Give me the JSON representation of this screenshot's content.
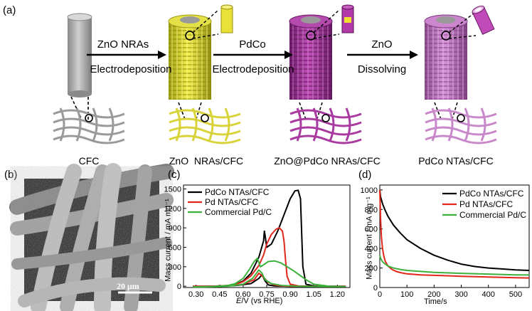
{
  "panel_a": {
    "tag": "(a)",
    "steps": [
      {
        "top": "ZnO NRAs",
        "bottom": "Electrodeposition"
      },
      {
        "top": "PdCo",
        "bottom": "Electrodeposition"
      },
      {
        "top": "ZnO",
        "bottom": "Dissolving"
      }
    ],
    "stages": [
      "CFC",
      "ZnO  NRAs/CFC",
      "ZnO@PdCo NRAs/CFC",
      "PdCo NTAs/CFC"
    ],
    "colors": {
      "cfc": "#a8a8a8",
      "zno": "#e6e23a",
      "pdco_zno": "#b03aa8",
      "pdco": "#c476c8"
    }
  },
  "panel_b": {
    "tag": "(b)",
    "scale_bar": "20 μm"
  },
  "chart_data": [
    {
      "tag": "(c)",
      "type": "line",
      "xlabel_italic": "E",
      "xlabel_rest": "/V (vs RHE)",
      "ylabel": "Mass current / mA mg⁻¹",
      "xlim": [
        0.22,
        1.28
      ],
      "ylim": [
        -20,
        1560
      ],
      "xticks": [
        0.3,
        0.45,
        0.6,
        0.75,
        0.9,
        1.05,
        1.2
      ],
      "xtick_labels": [
        "0.30",
        "0.45",
        "0.60",
        "0.75",
        "0.90",
        "1.05",
        "1.20"
      ],
      "yticks": [
        0,
        300,
        600,
        900,
        1200,
        1500
      ],
      "ytick_labels": [
        "0",
        "300",
        "600",
        "900",
        "1200",
        "1500"
      ],
      "legend_position": "top-left",
      "series": [
        {
          "name": "PdCo NTAs/CFC",
          "color": "#000000",
          "x": [
            0.28,
            0.4,
            0.5,
            0.55,
            0.6,
            0.65,
            0.7,
            0.73,
            0.735,
            0.74,
            0.75,
            0.78,
            0.82,
            0.86,
            0.9,
            0.93,
            0.95,
            0.965,
            0.97,
            0.98,
            1.0,
            1.05,
            1.1,
            1.2,
            1.25,
            1.2,
            1.0,
            0.9,
            0.8,
            0.76,
            0.74,
            0.72,
            0.7,
            0.65,
            0.55,
            0.4,
            0.28
          ],
          "y": [
            0,
            0,
            10,
            30,
            80,
            200,
            450,
            700,
            850,
            780,
            600,
            650,
            850,
            1100,
            1350,
            1470,
            1480,
            1350,
            1000,
            300,
            30,
            5,
            0,
            0,
            0,
            0,
            0,
            0,
            5,
            20,
            80,
            180,
            120,
            40,
            10,
            0,
            0
          ]
        },
        {
          "name": "Pd NTAs/CFC",
          "color": "#e1261c",
          "x": [
            0.28,
            0.4,
            0.5,
            0.55,
            0.6,
            0.65,
            0.7,
            0.73,
            0.75,
            0.78,
            0.81,
            0.83,
            0.85,
            0.86,
            0.87,
            0.88,
            0.9,
            0.95,
            1.0,
            1.1,
            1.25,
            1.1,
            0.95,
            0.9,
            0.85,
            0.8,
            0.76,
            0.72,
            0.7,
            0.67,
            0.6,
            0.5,
            0.35,
            0.28
          ],
          "y": [
            0,
            0,
            10,
            30,
            70,
            160,
            320,
            480,
            650,
            800,
            880,
            900,
            850,
            700,
            400,
            150,
            30,
            5,
            0,
            0,
            0,
            0,
            0,
            0,
            5,
            20,
            60,
            160,
            200,
            100,
            30,
            5,
            0,
            0
          ]
        },
        {
          "name": "Commercial Pd/C",
          "color": "#3cb13c",
          "x": [
            0.28,
            0.4,
            0.5,
            0.55,
            0.6,
            0.64,
            0.67,
            0.69,
            0.71,
            0.73,
            0.76,
            0.8,
            0.84,
            0.88,
            0.92,
            0.96,
            1.0,
            1.05,
            1.15,
            1.25,
            1.1,
            0.95,
            0.85,
            0.78,
            0.74,
            0.72,
            0.7,
            0.66,
            0.6,
            0.5,
            0.35,
            0.28
          ],
          "y": [
            -10,
            -5,
            10,
            40,
            120,
            260,
            380,
            430,
            300,
            330,
            380,
            390,
            360,
            300,
            240,
            170,
            100,
            30,
            0,
            -5,
            -5,
            0,
            10,
            40,
            100,
            200,
            250,
            120,
            30,
            0,
            -10,
            -10
          ]
        }
      ]
    },
    {
      "tag": "(d)",
      "type": "line",
      "xlabel": "Time/s",
      "ylabel": "Mass current / mA mg⁻¹",
      "xlim": [
        0,
        550
      ],
      "ylim": [
        0,
        1050
      ],
      "xticks": [
        0,
        100,
        200,
        300,
        400,
        500
      ],
      "xtick_labels": [
        "0",
        "100",
        "200",
        "300",
        "400",
        "500"
      ],
      "yticks": [
        0,
        200,
        400,
        600,
        800,
        1000
      ],
      "ytick_labels": [
        "0",
        "200",
        "400",
        "600",
        "800",
        "1000"
      ],
      "legend_position": "top-right",
      "series": [
        {
          "name": "PdCo NTAs/CFC",
          "color": "#000000",
          "x": [
            0,
            3,
            10,
            20,
            30,
            50,
            75,
            100,
            150,
            200,
            250,
            300,
            350,
            400,
            450,
            500,
            550
          ],
          "y": [
            1000,
            930,
            860,
            790,
            730,
            640,
            560,
            490,
            400,
            330,
            280,
            240,
            215,
            200,
            190,
            180,
            175
          ]
        },
        {
          "name": "Pd NTAs/CFC",
          "color": "#e1261c",
          "x": [
            0,
            3,
            6,
            10,
            15,
            20,
            30,
            45,
            60,
            80,
            100,
            150,
            200,
            300,
            400,
            500,
            550
          ],
          "y": [
            1000,
            700,
            520,
            400,
            320,
            270,
            220,
            185,
            165,
            150,
            140,
            130,
            125,
            115,
            108,
            100,
            98
          ]
        },
        {
          "name": "Commercial Pd/C",
          "color": "#3cb13c",
          "x": [
            0,
            3,
            10,
            20,
            30,
            50,
            75,
            100,
            150,
            200,
            300,
            400,
            500,
            550
          ],
          "y": [
            330,
            300,
            265,
            240,
            220,
            200,
            185,
            175,
            165,
            155,
            145,
            138,
            130,
            128
          ]
        }
      ]
    }
  ]
}
